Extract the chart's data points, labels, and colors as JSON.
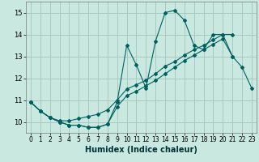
{
  "xlabel": "Humidex (Indice chaleur)",
  "xlim": [
    -0.5,
    23.5
  ],
  "ylim": [
    9.5,
    15.5
  ],
  "yticks": [
    10,
    11,
    12,
    13,
    14,
    15
  ],
  "xticks": [
    0,
    1,
    2,
    3,
    4,
    5,
    6,
    7,
    8,
    9,
    10,
    11,
    12,
    13,
    14,
    15,
    16,
    17,
    18,
    19,
    20,
    21,
    22,
    23
  ],
  "bg_color": "#c8e8e0",
  "grid_color": "#a8c8c0",
  "line_color": "#006060",
  "line1_y": [
    10.9,
    10.5,
    10.2,
    10.0,
    9.85,
    9.85,
    9.75,
    9.75,
    9.9,
    10.9,
    13.5,
    12.6,
    11.55,
    13.7,
    15.0,
    15.1,
    14.65,
    13.5,
    13.3,
    14.0,
    14.0,
    13.0,
    null,
    null
  ],
  "line2_y": [
    10.9,
    10.5,
    10.2,
    10.05,
    10.05,
    10.15,
    10.25,
    10.35,
    10.55,
    11.0,
    11.5,
    11.7,
    11.9,
    12.2,
    12.55,
    12.75,
    13.05,
    13.3,
    13.5,
    13.75,
    14.0,
    14.0,
    null,
    null
  ],
  "line3_y": [
    10.9,
    10.5,
    10.2,
    10.0,
    9.85,
    9.85,
    9.75,
    9.75,
    9.9,
    10.7,
    11.2,
    11.4,
    11.65,
    11.9,
    12.2,
    12.5,
    12.8,
    13.05,
    13.3,
    13.55,
    13.8,
    13.0,
    12.5,
    11.55
  ]
}
